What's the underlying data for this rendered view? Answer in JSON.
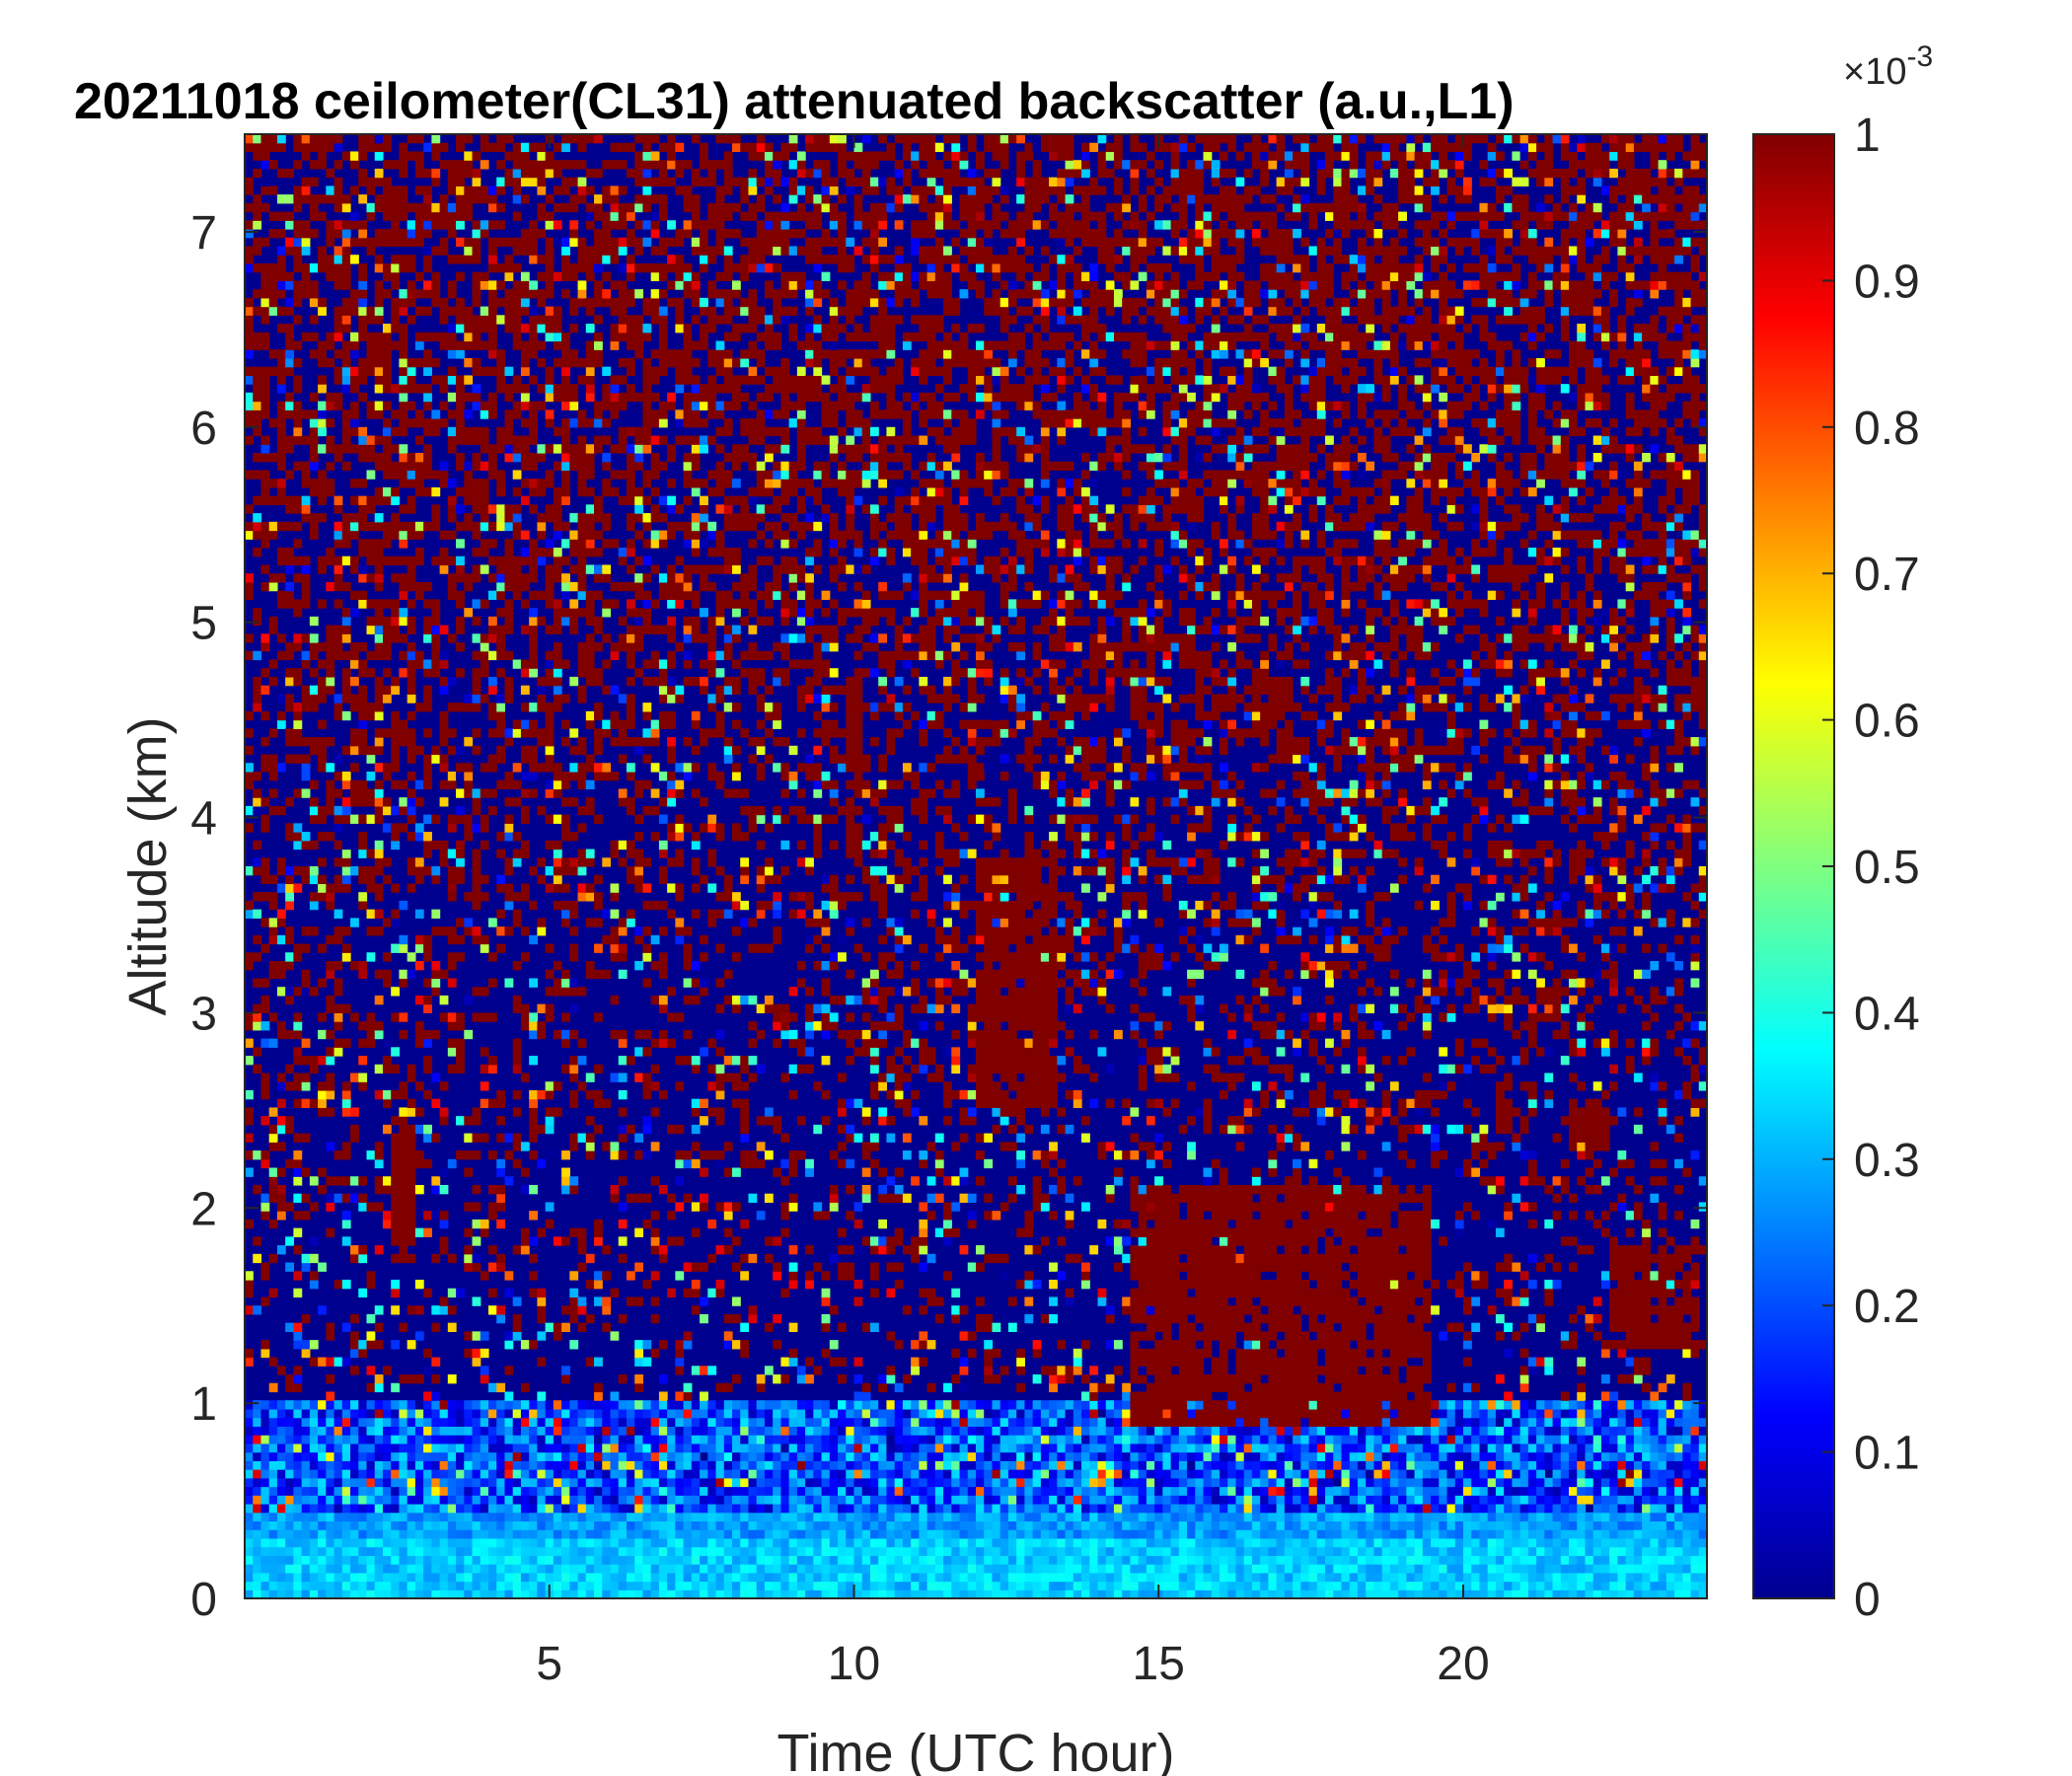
{
  "chart_data": {
    "type": "heatmap",
    "title": "20211018 ceilometer(CL31) attenuated backscatter (a.u.,L1)",
    "xlabel": "Time (UTC hour)",
    "ylabel": "Altitude (km)",
    "xlim": [
      0,
      24
    ],
    "ylim": [
      0,
      7.5
    ],
    "x_ticks": [
      5,
      10,
      15,
      20
    ],
    "y_ticks": [
      0,
      1,
      2,
      3,
      4,
      5,
      6,
      7
    ],
    "colorbar": {
      "colormap": "jet",
      "range": [
        0,
        1
      ],
      "ticks": [
        0,
        0.1,
        0.2,
        0.3,
        0.4,
        0.5,
        0.6,
        0.7,
        0.8,
        0.9,
        1
      ],
      "exponent_base": "×10",
      "exponent": "-3"
    },
    "features": [
      {
        "t_start": 12.0,
        "t_end": 13.3,
        "alt_bottom": 2.5,
        "alt_top": 3.8,
        "value": 1.0
      },
      {
        "t_start": 9.9,
        "t_end": 10.1,
        "alt_bottom": 3.8,
        "alt_top": 4.7,
        "value": 1.0
      },
      {
        "t_start": 2.4,
        "t_end": 2.8,
        "alt_bottom": 1.7,
        "alt_top": 2.4,
        "value": 1.0
      },
      {
        "t_start": 16.6,
        "t_end": 17.2,
        "alt_bottom": 4.4,
        "alt_top": 4.7,
        "value": 1.0
      },
      {
        "t_start": 14.5,
        "t_end": 19.5,
        "alt_bottom": 0.9,
        "alt_top": 2.1,
        "value": 1.0
      },
      {
        "t_start": 20.5,
        "t_end": 20.8,
        "alt_bottom": 2.4,
        "alt_top": 2.7,
        "value": 1.0
      },
      {
        "t_start": 21.8,
        "t_end": 22.4,
        "alt_bottom": 2.3,
        "alt_top": 2.5,
        "value": 1.0
      },
      {
        "t_start": 22.4,
        "t_end": 23.8,
        "alt_bottom": 1.3,
        "alt_top": 1.8,
        "value": 1.0
      }
    ]
  }
}
